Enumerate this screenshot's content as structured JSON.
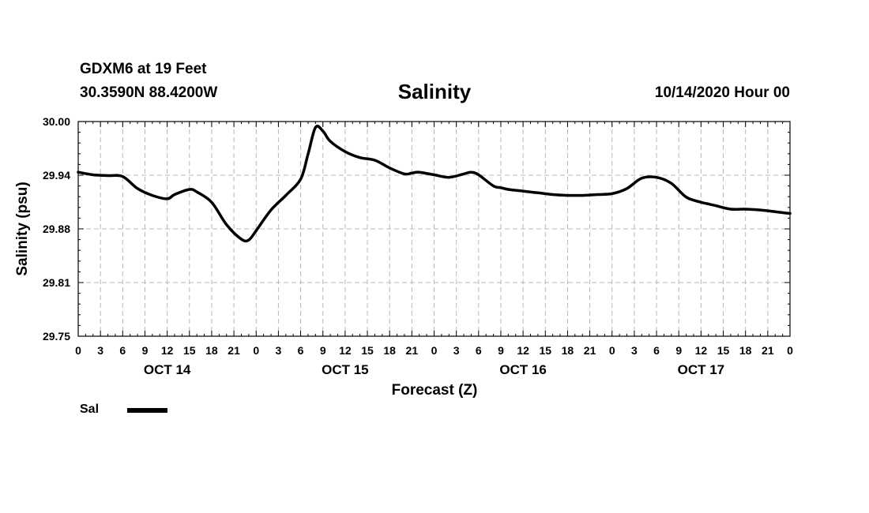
{
  "header": {
    "station": "GDXM6 at 19 Feet",
    "coords": "30.3590N 88.4200W",
    "run_time": "10/14/2020 Hour 00"
  },
  "chart_data": {
    "type": "line",
    "title": "Salinity",
    "xlabel": "Forecast (Z)",
    "ylabel": "Salinity (psu)",
    "ylim": [
      29.75,
      30.0
    ],
    "xlim": [
      0,
      96
    ],
    "grid": true,
    "y_ticks": [
      "29.75",
      "29.81",
      "29.88",
      "29.94",
      "30.00"
    ],
    "x_tick_labels": [
      "0",
      "3",
      "6",
      "9",
      "12",
      "15",
      "18",
      "21",
      "0",
      "3",
      "6",
      "9",
      "12",
      "15",
      "18",
      "21",
      "0",
      "3",
      "6",
      "9",
      "12",
      "15",
      "18",
      "21",
      "0",
      "3",
      "6",
      "9",
      "12",
      "15",
      "18",
      "21",
      "0"
    ],
    "day_labels": [
      {
        "hour": 12,
        "label": "OCT 14"
      },
      {
        "hour": 36,
        "label": "OCT 15"
      },
      {
        "hour": 60,
        "label": "OCT 16"
      },
      {
        "hour": 84,
        "label": "OCT 17"
      }
    ],
    "legend": {
      "position": "bottom-left",
      "entries": [
        {
          "name": "Sal",
          "color": "#000000"
        }
      ]
    },
    "series": [
      {
        "name": "Sal",
        "x": [
          0,
          2,
          4,
          6,
          8,
          10,
          12,
          13,
          15,
          16,
          18,
          20,
          22,
          23,
          24,
          26,
          28,
          30,
          31,
          32,
          33,
          34,
          36,
          38,
          40,
          42,
          44,
          45,
          46,
          48,
          50,
          52,
          53,
          54,
          56,
          57,
          58,
          60,
          62,
          64,
          66,
          68,
          70,
          72,
          74,
          76,
          78,
          80,
          82,
          84,
          85,
          86,
          88,
          90,
          92,
          94,
          96
        ],
        "y": [
          29.941,
          29.938,
          29.937,
          29.936,
          29.922,
          29.914,
          29.91,
          29.915,
          29.921,
          29.918,
          29.906,
          29.88,
          29.863,
          29.862,
          29.873,
          29.897,
          29.914,
          29.933,
          29.962,
          29.993,
          29.989,
          29.977,
          29.965,
          29.958,
          29.955,
          29.946,
          29.939,
          29.94,
          29.941,
          29.938,
          29.935,
          29.939,
          29.941,
          29.938,
          29.925,
          29.923,
          29.921,
          29.919,
          29.917,
          29.915,
          29.914,
          29.914,
          29.915,
          29.916,
          29.922,
          29.934,
          29.935,
          29.928,
          29.912,
          29.906,
          29.904,
          29.902,
          29.898,
          29.898,
          29.897,
          29.895,
          29.893
        ]
      }
    ]
  }
}
